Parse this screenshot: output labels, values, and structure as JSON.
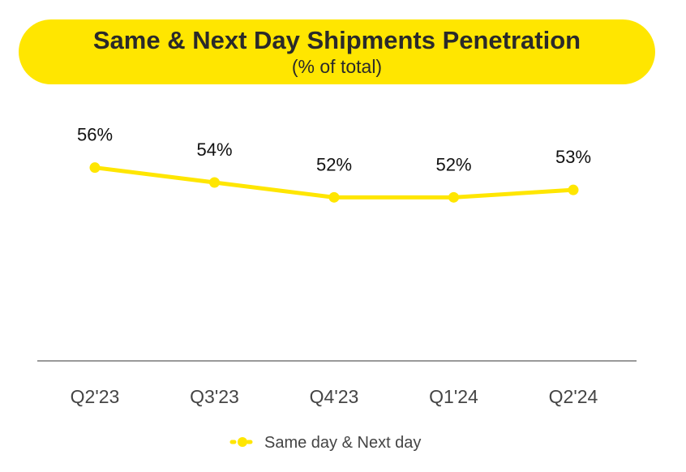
{
  "header": {
    "title": "Same & Next Day Shipments Penetration",
    "subtitle": "(% of total)"
  },
  "colors": {
    "line": "#FFE600",
    "axis": "#9a9a9a"
  },
  "chart_data": {
    "type": "line",
    "title": "Same & Next Day Shipments Penetration",
    "subtitle": "(% of total)",
    "xlabel": "",
    "ylabel": "",
    "categories": [
      "Q2'23",
      "Q3'23",
      "Q4'23",
      "Q1'24",
      "Q2'24"
    ],
    "series": [
      {
        "name": "Same day & Next day",
        "values": [
          56,
          54,
          52,
          52,
          53
        ],
        "labels": [
          "56%",
          "54%",
          "52%",
          "52%",
          "53%"
        ]
      }
    ],
    "ylim": [
      30,
      60
    ],
    "grid": false,
    "legend": "bottom-center"
  }
}
